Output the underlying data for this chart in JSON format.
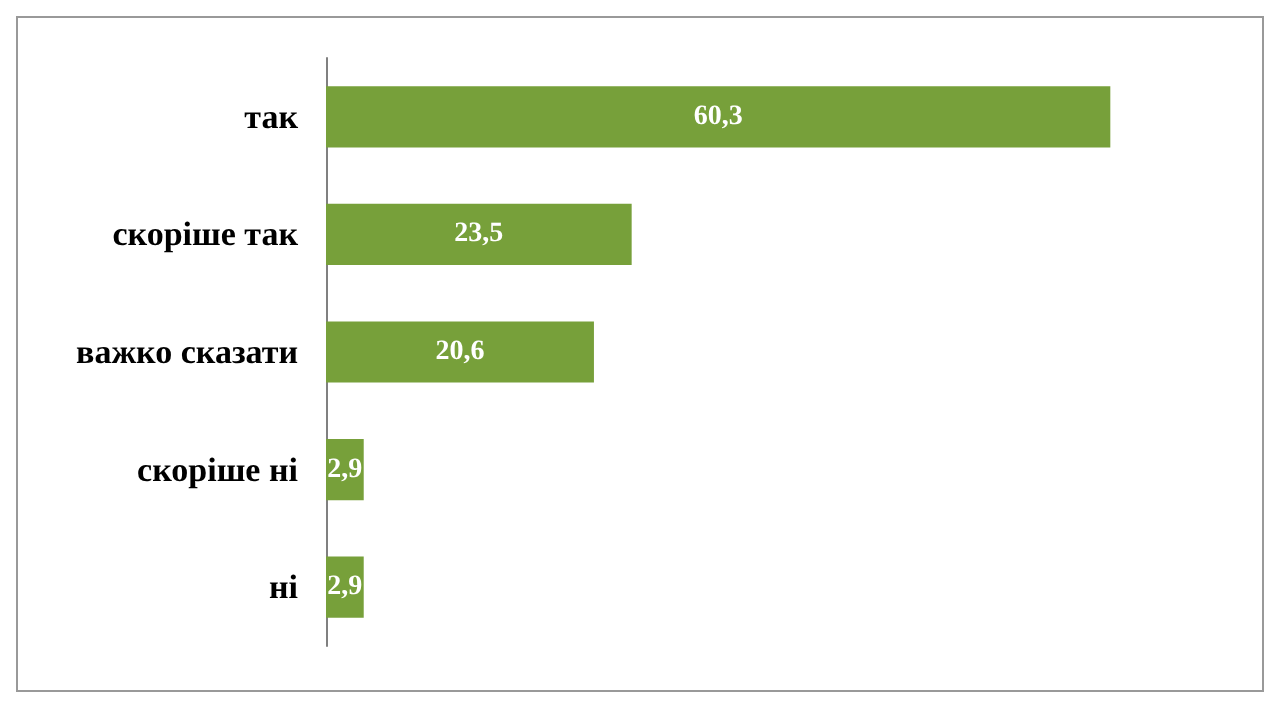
{
  "chart_data": {
    "type": "bar",
    "orientation": "horizontal",
    "categories": [
      "так",
      "скоріше так",
      "важко сказати",
      "скоріше ні",
      "ні"
    ],
    "values": [
      60.3,
      23.5,
      20.6,
      2.9,
      2.9
    ],
    "value_labels": [
      "60,3",
      "23,5",
      "20,6",
      "2,9",
      "2,9"
    ],
    "color": "#77a03a"
  }
}
